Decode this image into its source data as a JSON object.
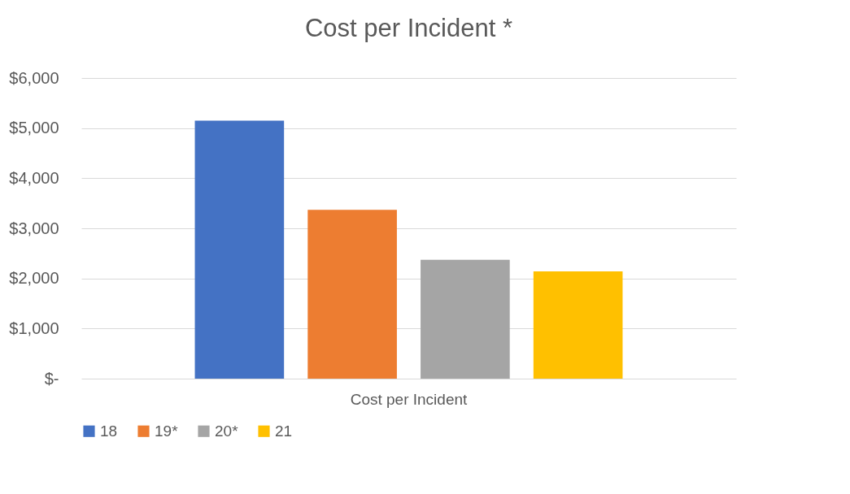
{
  "chart_data": {
    "type": "bar",
    "title": "Cost per Incident *",
    "categories": [
      "Cost per Incident"
    ],
    "series": [
      {
        "name": "18",
        "color": "#4472c4",
        "values": [
          5150
        ]
      },
      {
        "name": "19*",
        "color": "#ed7d31",
        "values": [
          3370
        ]
      },
      {
        "name": "20*",
        "color": "#a5a5a5",
        "values": [
          2370
        ]
      },
      {
        "name": "21",
        "color": "#ffc000",
        "values": [
          2140
        ]
      }
    ],
    "ylim": [
      0,
      6000
    ],
    "yticks": [
      {
        "value": 0,
        "label": "$-"
      },
      {
        "value": 1000,
        "label": "$1,000"
      },
      {
        "value": 2000,
        "label": "$2,000"
      },
      {
        "value": 3000,
        "label": "$3,000"
      },
      {
        "value": 4000,
        "label": "$4,000"
      },
      {
        "value": 5000,
        "label": "$5,000"
      },
      {
        "value": 6000,
        "label": "$6,000"
      }
    ],
    "grid": "y",
    "legend": "bottom"
  }
}
